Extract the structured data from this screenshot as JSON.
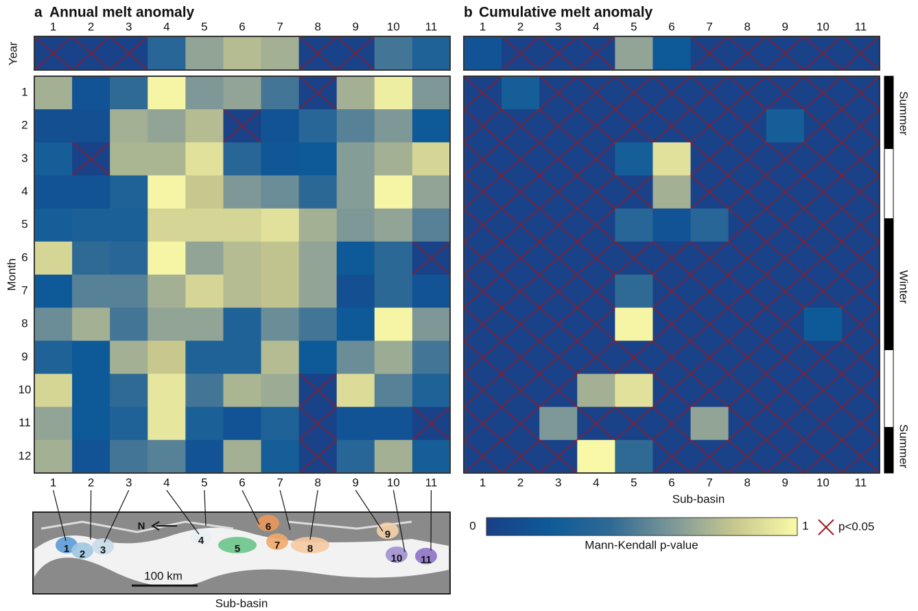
{
  "chart_data": [
    {
      "type": "heatmap",
      "label": "a",
      "title": "Annual melt anomaly",
      "columns": [
        "1",
        "2",
        "3",
        "4",
        "5",
        "6",
        "7",
        "8",
        "9",
        "10",
        "11"
      ],
      "year_label": "Year",
      "year_values": [
        0.02,
        0.02,
        0.02,
        0.35,
        0.65,
        0.75,
        0.7,
        0.02,
        0.02,
        0.45,
        0.3
      ],
      "rows": [
        "1",
        "2",
        "3",
        "4",
        "5",
        "6",
        "7",
        "8",
        "9",
        "10",
        "11",
        "12"
      ],
      "ylabel": "Month",
      "xlabel": "Sub-basin",
      "values": [
        [
          0.7,
          0.15,
          0.4,
          0.98,
          0.6,
          0.65,
          0.45,
          0.02,
          0.7,
          0.95,
          0.6
        ],
        [
          0.12,
          0.12,
          0.7,
          0.65,
          0.75,
          0.02,
          0.15,
          0.35,
          0.5,
          0.6,
          0.2
        ],
        [
          0.25,
          0.02,
          0.72,
          0.72,
          0.9,
          0.35,
          0.18,
          0.2,
          0.62,
          0.7,
          0.85
        ],
        [
          0.15,
          0.15,
          0.3,
          0.98,
          0.8,
          0.6,
          0.55,
          0.38,
          0.62,
          0.98,
          0.65
        ],
        [
          0.25,
          0.28,
          0.28,
          0.85,
          0.85,
          0.85,
          0.9,
          0.7,
          0.6,
          0.65,
          0.5
        ],
        [
          0.85,
          0.4,
          0.35,
          0.98,
          0.65,
          0.75,
          0.78,
          0.65,
          0.2,
          0.38,
          0.02
        ],
        [
          0.2,
          0.5,
          0.5,
          0.7,
          0.85,
          0.75,
          0.78,
          0.65,
          0.12,
          0.38,
          0.15
        ],
        [
          0.55,
          0.7,
          0.45,
          0.65,
          0.65,
          0.3,
          0.55,
          0.45,
          0.2,
          0.98,
          0.6
        ],
        [
          0.3,
          0.2,
          0.7,
          0.8,
          0.3,
          0.3,
          0.75,
          0.2,
          0.55,
          0.68,
          0.45
        ],
        [
          0.85,
          0.2,
          0.4,
          0.92,
          0.45,
          0.72,
          0.68,
          0.02,
          0.88,
          0.5,
          0.3
        ],
        [
          0.65,
          0.2,
          0.3,
          0.92,
          0.28,
          0.15,
          0.3,
          0.02,
          0.15,
          0.15,
          0.02
        ],
        [
          0.7,
          0.15,
          0.45,
          0.5,
          0.15,
          0.7,
          0.25,
          0.02,
          0.35,
          0.7,
          0.25
        ]
      ]
    },
    {
      "type": "heatmap",
      "label": "b",
      "title": "Cumulative melt anomaly",
      "columns": [
        "1",
        "2",
        "3",
        "4",
        "5",
        "6",
        "7",
        "8",
        "9",
        "10",
        "11"
      ],
      "year_values": [
        0.15,
        0.02,
        0.02,
        0.02,
        0.65,
        0.2,
        0.02,
        0.02,
        0.02,
        0.02,
        0.02
      ],
      "rows": [
        "1",
        "2",
        "3",
        "4",
        "5",
        "6",
        "7",
        "8",
        "9",
        "10",
        "11",
        "12"
      ],
      "xlabel": "Sub-basin",
      "seasons": [
        "Summer",
        "Winter",
        "Summer"
      ],
      "values": [
        [
          0.02,
          0.25,
          0.02,
          0.02,
          0.02,
          0.02,
          0.02,
          0.02,
          0.02,
          0.02,
          0.02
        ],
        [
          0.02,
          0.02,
          0.02,
          0.02,
          0.02,
          0.02,
          0.02,
          0.02,
          0.25,
          0.02,
          0.02
        ],
        [
          0.02,
          0.02,
          0.02,
          0.02,
          0.25,
          0.9,
          0.02,
          0.02,
          0.02,
          0.02,
          0.02
        ],
        [
          0.02,
          0.02,
          0.02,
          0.02,
          0.02,
          0.7,
          0.02,
          0.02,
          0.02,
          0.02,
          0.02
        ],
        [
          0.02,
          0.02,
          0.02,
          0.02,
          0.35,
          0.15,
          0.35,
          0.02,
          0.02,
          0.02,
          0.02
        ],
        [
          0.02,
          0.02,
          0.02,
          0.02,
          0.02,
          0.02,
          0.02,
          0.02,
          0.02,
          0.02,
          0.02
        ],
        [
          0.02,
          0.02,
          0.02,
          0.02,
          0.4,
          0.02,
          0.02,
          0.02,
          0.02,
          0.02,
          0.02
        ],
        [
          0.02,
          0.02,
          0.02,
          0.02,
          0.98,
          0.02,
          0.02,
          0.02,
          0.02,
          0.2,
          0.02
        ],
        [
          0.02,
          0.02,
          0.02,
          0.02,
          0.02,
          0.02,
          0.02,
          0.02,
          0.02,
          0.02,
          0.02
        ],
        [
          0.02,
          0.02,
          0.02,
          0.7,
          0.9,
          0.02,
          0.02,
          0.02,
          0.02,
          0.02,
          0.02
        ],
        [
          0.02,
          0.02,
          0.6,
          0.02,
          0.02,
          0.02,
          0.65,
          0.02,
          0.02,
          0.02,
          0.02
        ],
        [
          0.02,
          0.02,
          0.02,
          0.99,
          0.4,
          0.02,
          0.02,
          0.02,
          0.02,
          0.02,
          0.02
        ]
      ]
    }
  ],
  "colorbar": {
    "label": "Mann-Kendall p-value",
    "lim": [
      0,
      1
    ],
    "ticks": [
      0,
      1
    ],
    "colors": [
      "#1a3f86",
      "#0e5a98",
      "#2f6a95",
      "#7e9898",
      "#c8c88e",
      "#fafaa8"
    ],
    "cross_label": "p<0.05",
    "threshold": 0.05,
    "cross_color": "#a3161c"
  },
  "map": {
    "north": "N",
    "scale": "100 km"
  }
}
